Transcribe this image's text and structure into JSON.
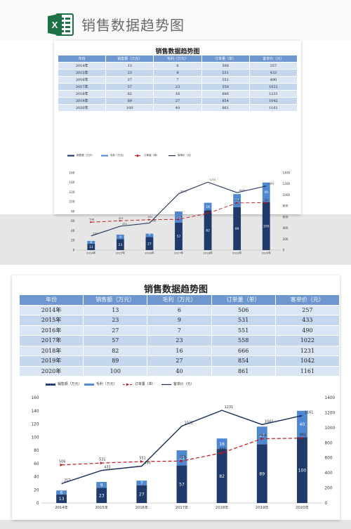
{
  "page": {
    "banner_title": "销售数据趋势图",
    "app_icon": "excel-icon"
  },
  "sheet": {
    "title": "销售数据趋势图",
    "columns": [
      "年份",
      "销售额（万元）",
      "毛利（万元）",
      "订单量（单）",
      "客单价（元）"
    ],
    "rows": [
      [
        "2014年",
        "13",
        "6",
        "506",
        "257"
      ],
      [
        "2015年",
        "23",
        "9",
        "531",
        "433"
      ],
      [
        "2016年",
        "27",
        "7",
        "551",
        "490"
      ],
      [
        "2017年",
        "57",
        "23",
        "558",
        "1022"
      ],
      [
        "2018年",
        "82",
        "16",
        "666",
        "1231"
      ],
      [
        "2019年",
        "89",
        "27",
        "854",
        "1042"
      ],
      [
        "2020年",
        "100",
        "40",
        "861",
        "1161"
      ]
    ]
  },
  "chart_data": {
    "type": "bar",
    "categories": [
      "2014年",
      "2015年",
      "2016年",
      "2017年",
      "2018年",
      "2019年",
      "2020年"
    ],
    "series": [
      {
        "name": "销售额（万元）",
        "type": "stacked-bar",
        "axis": "left",
        "values": [
          13,
          23,
          27,
          57,
          82,
          89,
          100
        ],
        "color": "#1f3b6b"
      },
      {
        "name": "毛利（万元）",
        "type": "stacked-bar",
        "axis": "left",
        "values": [
          6,
          9,
          7,
          23,
          16,
          27,
          40
        ],
        "color": "#4f88d0"
      },
      {
        "name": "订单量（单）",
        "type": "line-dashed",
        "axis": "right",
        "values": [
          506,
          531,
          551,
          558,
          666,
          854,
          861
        ],
        "color": "#c0141c"
      },
      {
        "name": "客单价（元）",
        "type": "line",
        "axis": "right",
        "values": [
          257,
          433,
          490,
          1022,
          1231,
          1042,
          1161
        ],
        "color": "#1b2f5c"
      }
    ],
    "ylim_left": [
      0,
      160
    ],
    "yticks_left": [
      "0",
      "20",
      "40",
      "60",
      "80",
      "100",
      "120",
      "140",
      "160"
    ],
    "ylim_right": [
      0,
      1400
    ],
    "yticks_right": [
      "0",
      "200",
      "400",
      "600",
      "800",
      "1000",
      "1200",
      "1400"
    ],
    "grid": false,
    "legend": "top-left"
  }
}
